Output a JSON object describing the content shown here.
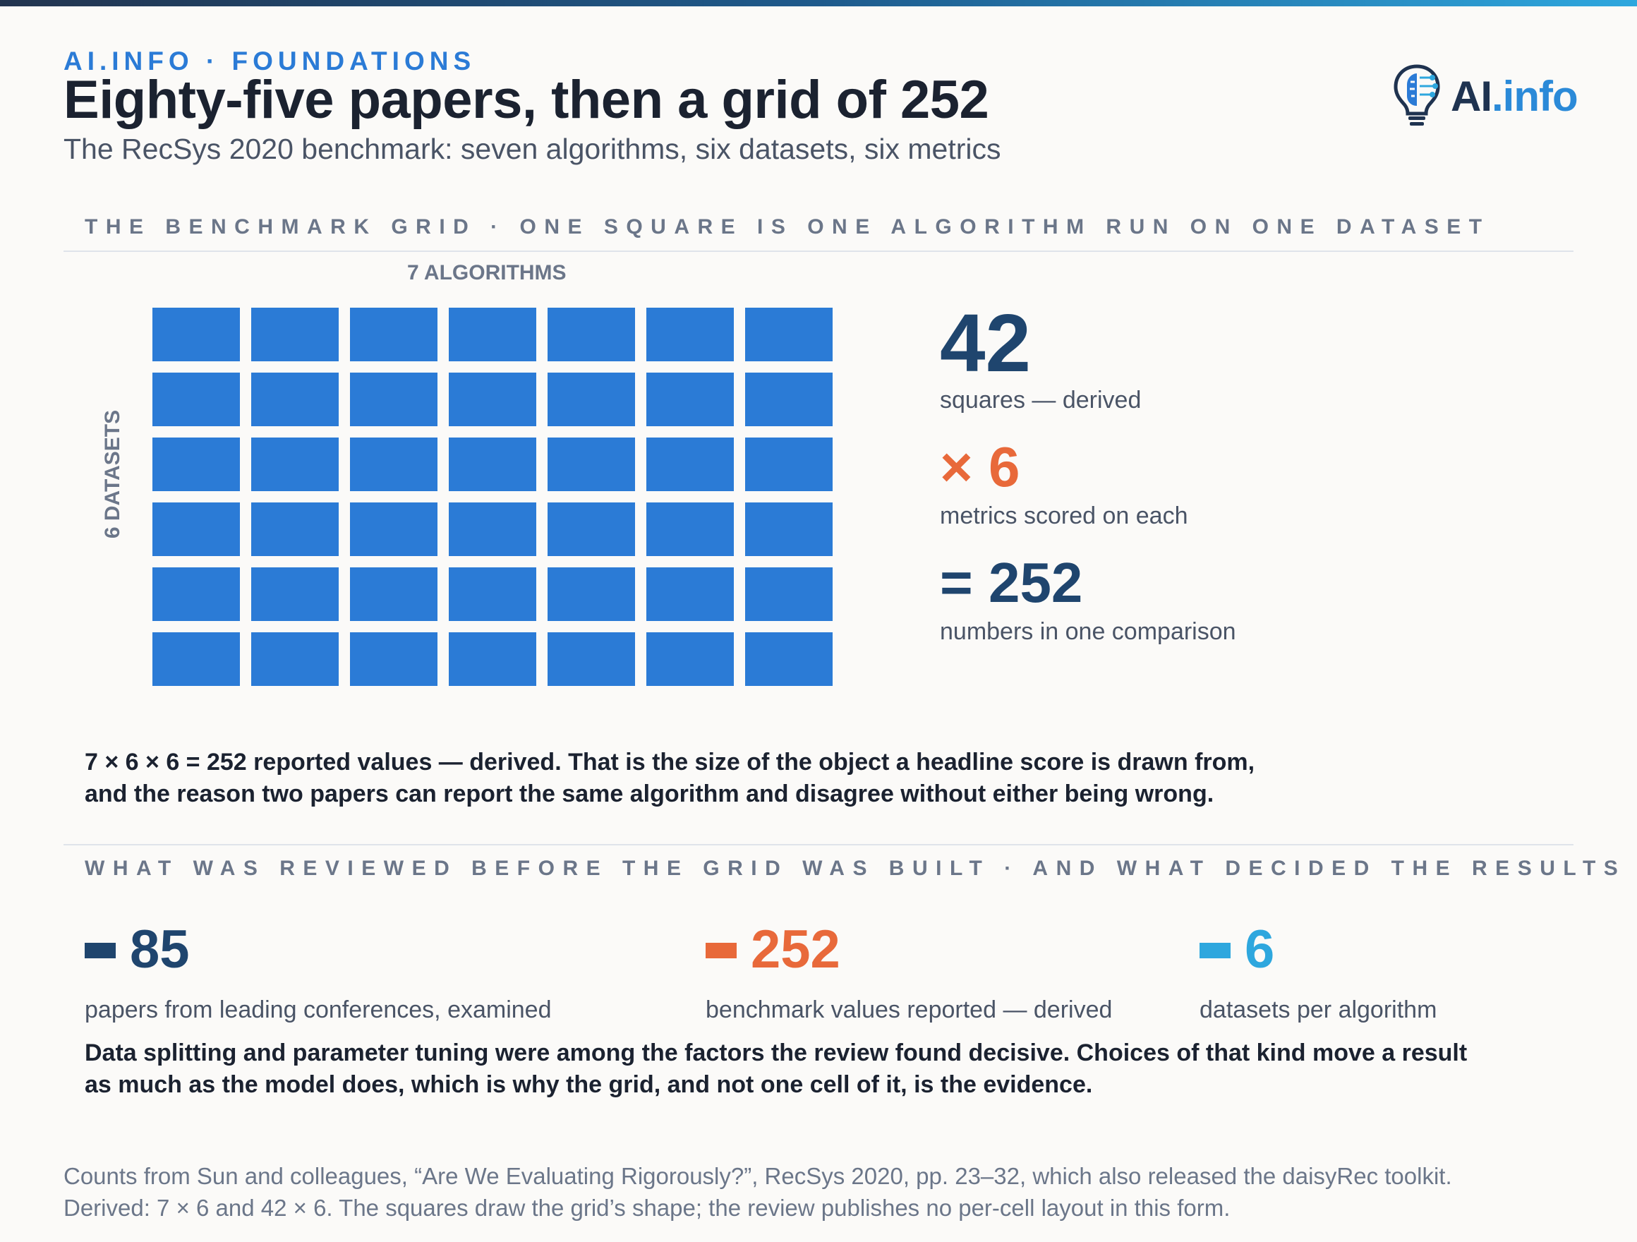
{
  "header": {
    "kicker": "AI.INFO · FOUNDATIONS",
    "title": "Eighty-five papers, then a grid of 252",
    "subtitle": "The RecSys 2020 benchmark: seven algorithms, six datasets, six metrics"
  },
  "logo": {
    "text_ai": "AI",
    "text_info": ".info",
    "icon": "lightbulb-brain-icon"
  },
  "grid_section": {
    "label": "THE BENCHMARK GRID · ONE SQUARE IS ONE ALGORITHM RUN ON ONE DATASET",
    "axis_top": "7 ALGORITHMS",
    "axis_left": "6 DATASETS",
    "columns": 7,
    "rows": 6,
    "square_color": "#2b7bd6"
  },
  "totals": {
    "squares_value": "42",
    "squares_caption": "squares — derived",
    "metrics_value": "× 6",
    "metrics_caption": "metrics scored on each",
    "result_value": "= 252",
    "result_caption": "numbers in one comparison"
  },
  "grid_note": {
    "line1": "7 × 6 × 6 = 252 reported values — derived. That is the size of the object a headline score is drawn from,",
    "line2": "and the reason two papers can report the same algorithm and disagree without either being wrong."
  },
  "review_section": {
    "label": "WHAT WAS REVIEWED BEFORE THE GRID WAS BUILT · AND WHAT DECIDED THE RESULTS",
    "stats": [
      {
        "value": "85",
        "caption": "papers from leading conferences, examined",
        "color": "#1f456e"
      },
      {
        "value": "252",
        "caption": "benchmark values reported — derived",
        "color": "#e8693a"
      },
      {
        "value": "6",
        "caption": "datasets per algorithm",
        "color": "#2ea7de"
      }
    ],
    "note_line1": "Data splitting and parameter tuning were among the factors the review found decisive. Choices of that kind move a result",
    "note_line2": "as much as the model does, which is why the grid, and not one cell of it, is the evidence."
  },
  "footnote": {
    "line1": "Counts from Sun and colleagues, “Are We Evaluating Rigorously?”, RecSys 2020, pp. 23–32, which also released the daisyRec toolkit.",
    "line2": "Derived: 7 × 6 and 42 × 6. The squares draw the grid’s shape; the review publishes no per-cell layout in this form."
  }
}
